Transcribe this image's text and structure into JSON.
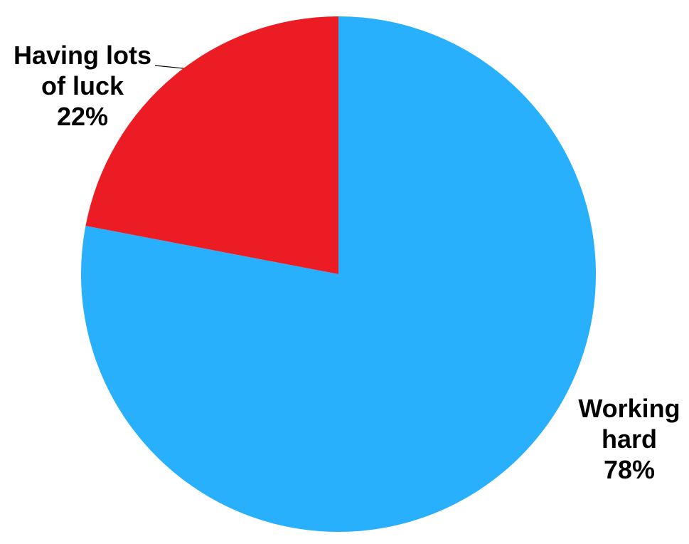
{
  "chart_data": {
    "type": "pie",
    "title": "",
    "start_angle": "12 o'clock, clockwise",
    "slices": [
      {
        "label_lines": [
          "Working",
          "hard"
        ],
        "value": 78,
        "value_label": "78%",
        "color": "#29B0FC"
      },
      {
        "label_lines": [
          "Having lots",
          "of luck"
        ],
        "value": 22,
        "value_label": "22%",
        "color": "#EC1C24"
      }
    ]
  }
}
